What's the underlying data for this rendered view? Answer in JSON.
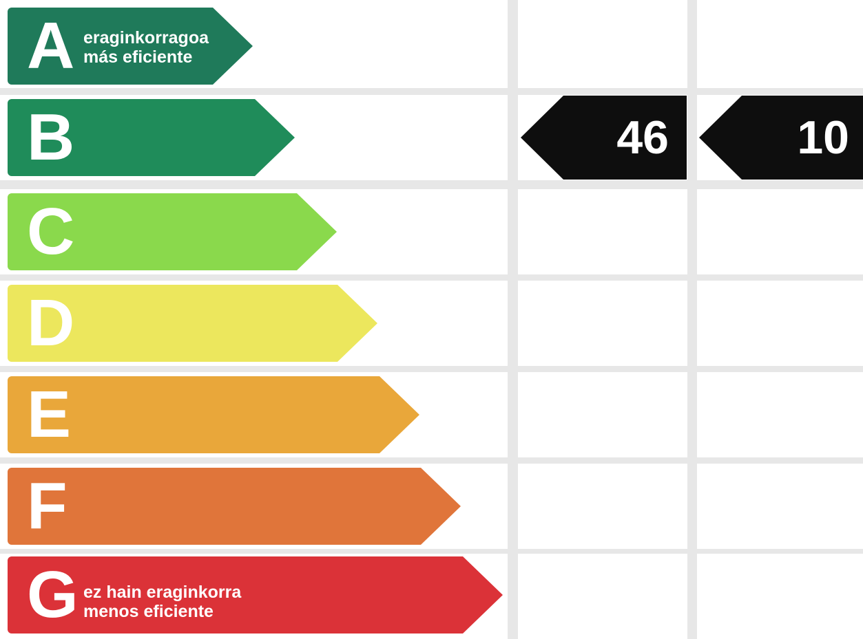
{
  "energy_label": {
    "scale": [
      {
        "letter": "A",
        "color": "#1f7a5a",
        "line1": "eraginkorragoa",
        "line2": "más eficiente"
      },
      {
        "letter": "B",
        "color": "#1f8c5a",
        "line1": "",
        "line2": ""
      },
      {
        "letter": "C",
        "color": "#8ad94c",
        "line1": "",
        "line2": ""
      },
      {
        "letter": "D",
        "color": "#ece75d",
        "line1": "",
        "line2": ""
      },
      {
        "letter": "E",
        "color": "#e9a73a",
        "line1": "",
        "line2": ""
      },
      {
        "letter": "F",
        "color": "#e0753a",
        "line1": "",
        "line2": ""
      },
      {
        "letter": "G",
        "color": "#db3238",
        "line1": "ez hain eraginkorra",
        "line2": "menos eficiente"
      }
    ],
    "ratings": [
      {
        "value": "46",
        "class": "B"
      },
      {
        "value": "10",
        "class": "B"
      }
    ],
    "rating_color": "#0e0e0e",
    "background": "#ffffff",
    "grid_color": "#e7e7e7"
  }
}
